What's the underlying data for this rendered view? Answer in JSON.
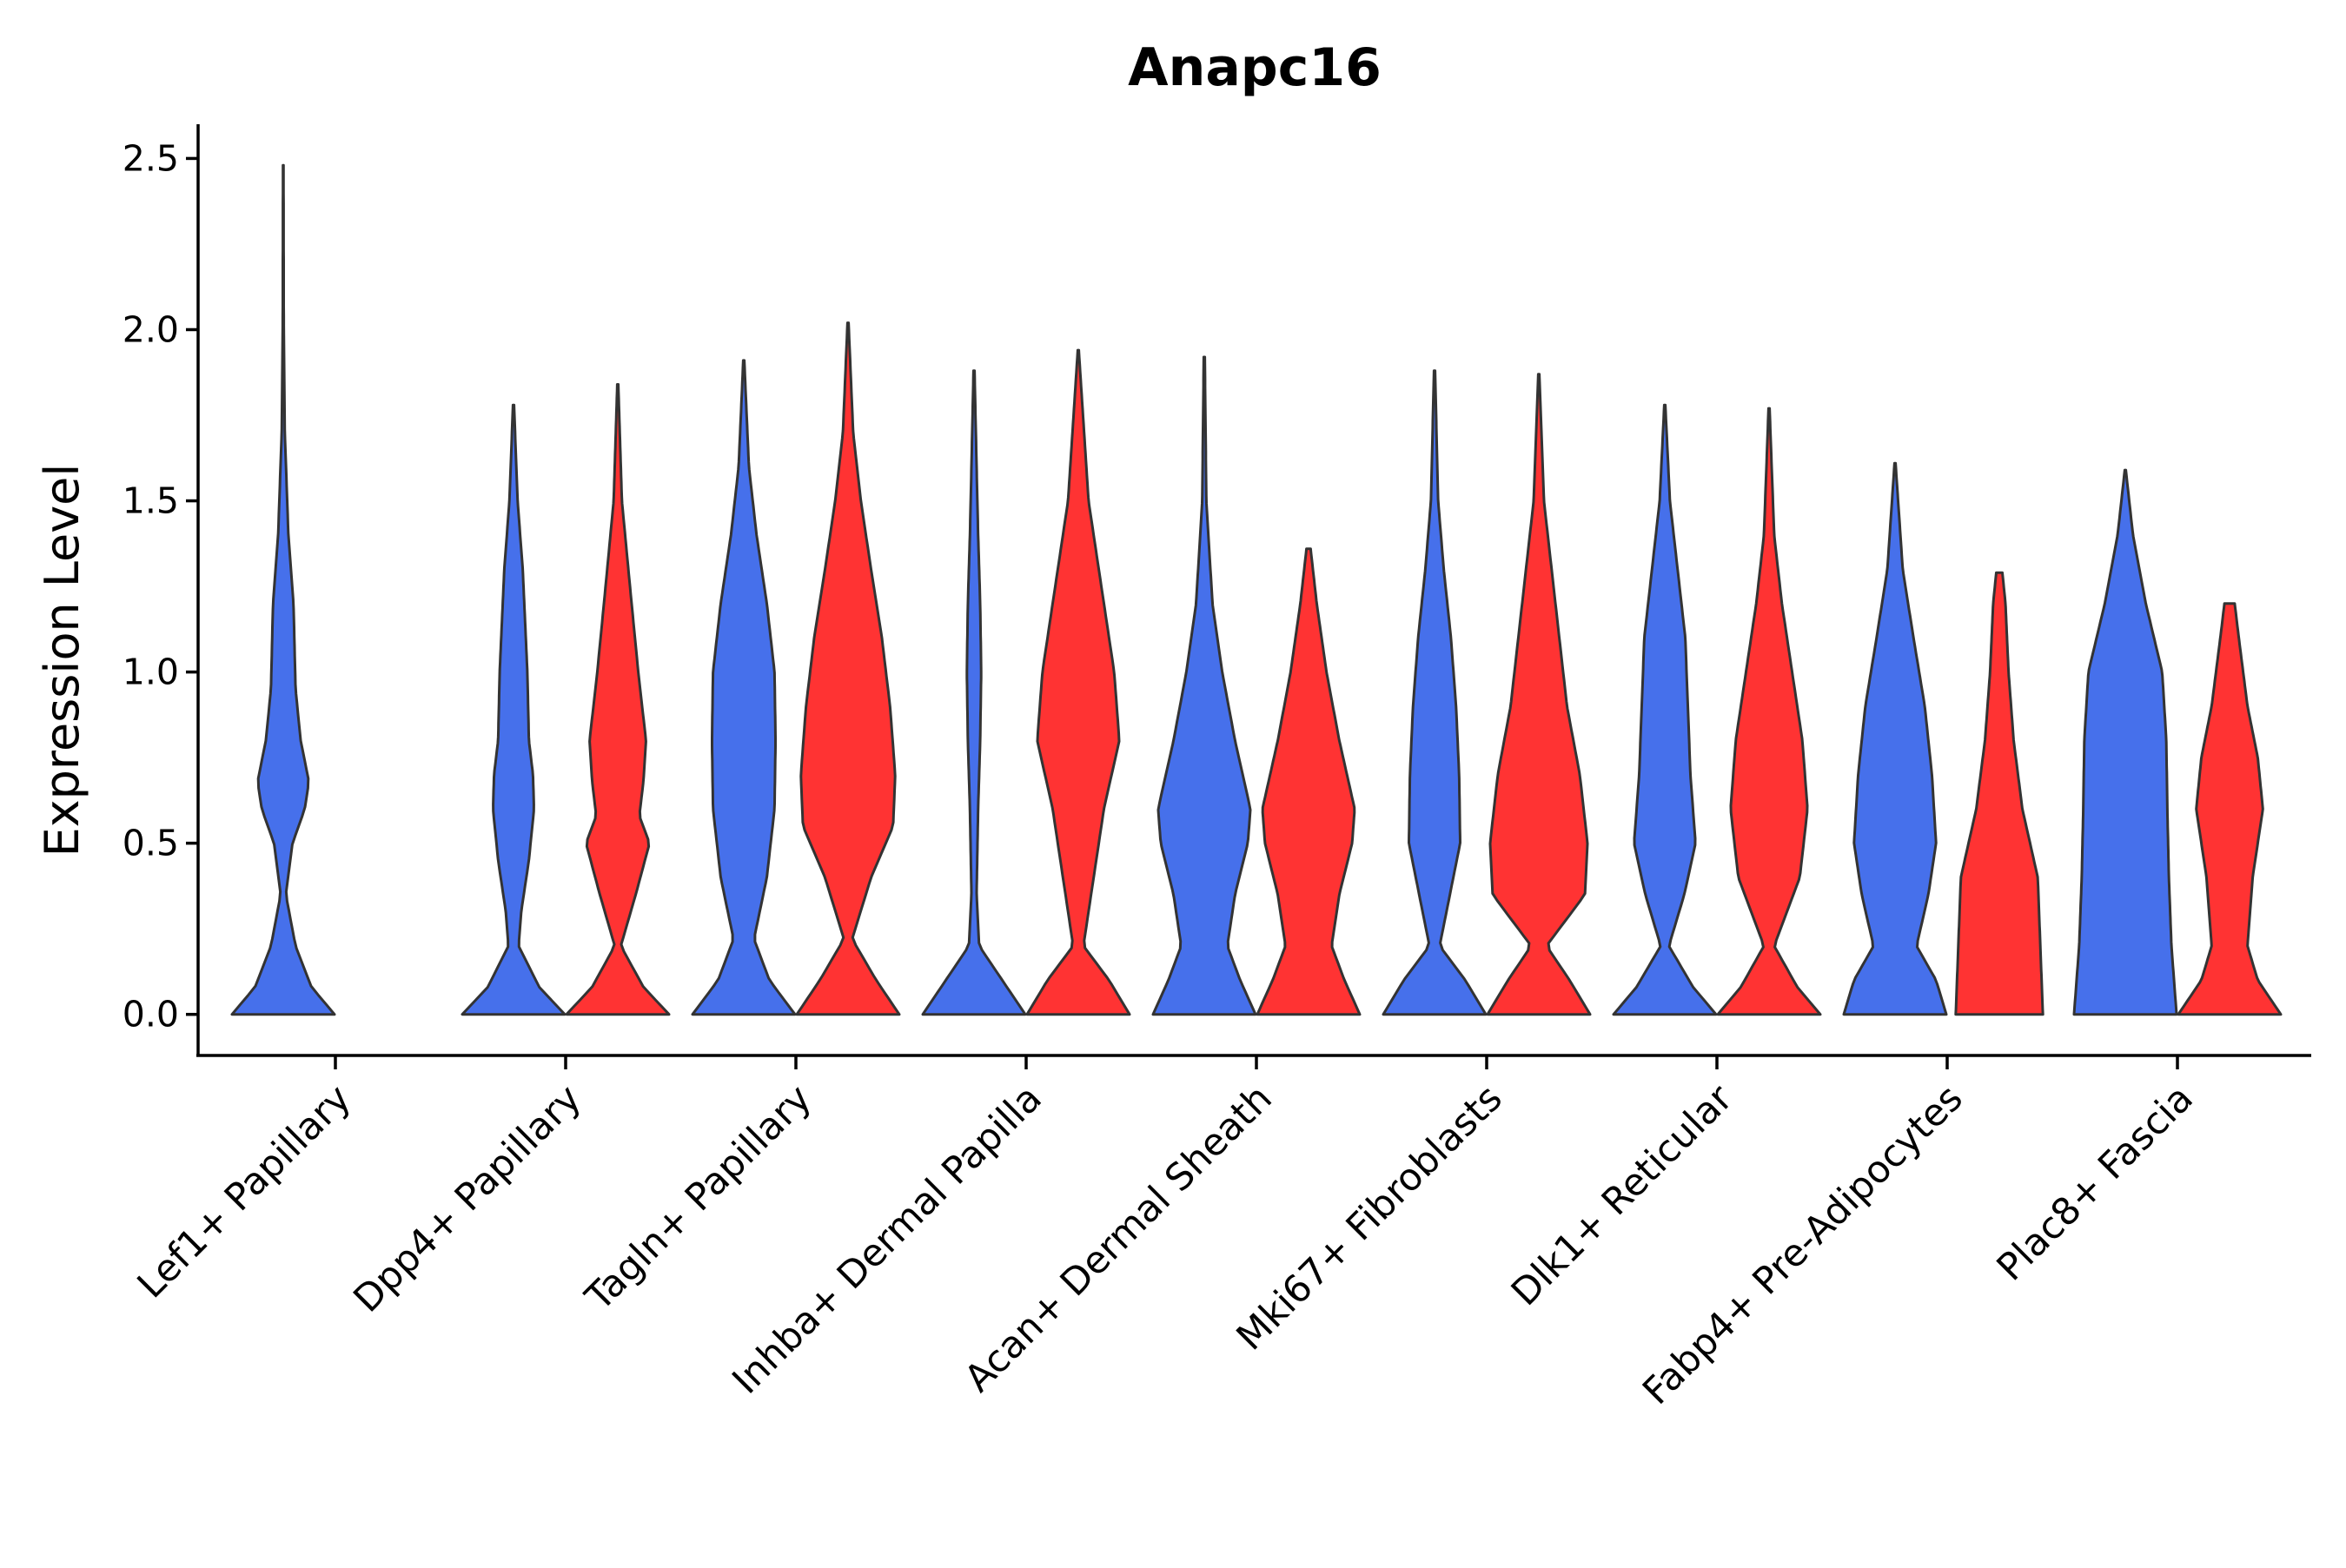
{
  "chart_data": {
    "type": "violin",
    "title": "Anapc16",
    "xlabel": "",
    "ylabel": "Expression Level",
    "ylim": [
      -0.12,
      2.6
    ],
    "yticks": [
      0.0,
      0.5,
      1.0,
      1.5,
      2.0,
      2.5
    ],
    "ytick_labels": [
      "0.0",
      "0.5",
      "1.0",
      "1.5",
      "2.0",
      "2.5"
    ],
    "grid": false,
    "legend": "none",
    "series_colors": {
      "blue": "#4670EB",
      "red": "#FF3333"
    },
    "categories": [
      "Lef1+ Papillary",
      "Dpp4+ Papillary",
      "Tagln+ Papillary",
      "Inhba+ Dermal Papilla",
      "Acan+ Dermal Sheath",
      "Mki67+ Fibroblasts",
      "Dlk1+ Reticular",
      "Fabp4+ Pre-Adipocytes",
      "Plac8+ Fascia"
    ],
    "violins": [
      {
        "category": "Lef1+ Papillary",
        "color": "blue",
        "max": 2.48,
        "profile": [
          [
            0,
            1.0
          ],
          [
            0.08,
            0.55
          ],
          [
            0.2,
            0.24
          ],
          [
            0.35,
            0.05
          ],
          [
            0.5,
            0.18
          ],
          [
            0.6,
            0.42
          ],
          [
            0.68,
            0.5
          ],
          [
            0.8,
            0.34
          ],
          [
            0.95,
            0.24
          ],
          [
            1.2,
            0.2
          ],
          [
            1.4,
            0.1
          ],
          [
            1.7,
            0.03
          ],
          [
            2.0,
            0.01
          ],
          [
            2.48,
            0.005
          ]
        ]
      },
      {
        "category": "Dpp4+ Papillary",
        "color": "blue",
        "max": 1.78,
        "profile": [
          [
            0,
            1.0
          ],
          [
            0.08,
            0.5
          ],
          [
            0.2,
            0.1
          ],
          [
            0.3,
            0.15
          ],
          [
            0.45,
            0.3
          ],
          [
            0.6,
            0.4
          ],
          [
            0.7,
            0.38
          ],
          [
            0.8,
            0.3
          ],
          [
            1.0,
            0.27
          ],
          [
            1.3,
            0.18
          ],
          [
            1.5,
            0.08
          ],
          [
            1.78,
            0.01
          ]
        ]
      },
      {
        "category": "Dpp4+ Papillary",
        "color": "red",
        "max": 1.84,
        "profile": [
          [
            0,
            1.0
          ],
          [
            0.08,
            0.5
          ],
          [
            0.2,
            0.06
          ],
          [
            0.35,
            0.35
          ],
          [
            0.5,
            0.62
          ],
          [
            0.58,
            0.42
          ],
          [
            0.68,
            0.5
          ],
          [
            0.8,
            0.55
          ],
          [
            1.0,
            0.4
          ],
          [
            1.2,
            0.27
          ],
          [
            1.5,
            0.08
          ],
          [
            1.84,
            0.01
          ]
        ]
      },
      {
        "category": "Tagln+ Papillary",
        "color": "blue",
        "max": 1.91,
        "profile": [
          [
            0,
            1.0
          ],
          [
            0.1,
            0.5
          ],
          [
            0.22,
            0.2
          ],
          [
            0.4,
            0.45
          ],
          [
            0.6,
            0.6
          ],
          [
            0.8,
            0.62
          ],
          [
            1.0,
            0.6
          ],
          [
            1.2,
            0.45
          ],
          [
            1.4,
            0.25
          ],
          [
            1.6,
            0.1
          ],
          [
            1.91,
            0.01
          ]
        ]
      },
      {
        "category": "Tagln+ Papillary",
        "color": "red",
        "max": 2.02,
        "profile": [
          [
            0,
            1.0
          ],
          [
            0.1,
            0.55
          ],
          [
            0.22,
            0.08
          ],
          [
            0.4,
            0.45
          ],
          [
            0.55,
            0.88
          ],
          [
            0.7,
            0.92
          ],
          [
            0.9,
            0.82
          ],
          [
            1.1,
            0.66
          ],
          [
            1.3,
            0.45
          ],
          [
            1.5,
            0.25
          ],
          [
            1.7,
            0.1
          ],
          [
            2.02,
            0.01
          ]
        ]
      },
      {
        "category": "Inhba+ Dermal Papilla",
        "color": "blue",
        "max": 1.88,
        "profile": [
          [
            0,
            1.0
          ],
          [
            0.1,
            0.55
          ],
          [
            0.2,
            0.1
          ],
          [
            0.35,
            0.05
          ],
          [
            0.6,
            0.08
          ],
          [
            0.8,
            0.12
          ],
          [
            1.0,
            0.14
          ],
          [
            1.2,
            0.12
          ],
          [
            1.4,
            0.08
          ],
          [
            1.6,
            0.05
          ],
          [
            1.88,
            0.01
          ]
        ]
      },
      {
        "category": "Inhba+ Dermal Papilla",
        "color": "red",
        "max": 1.94,
        "profile": [
          [
            0,
            1.0
          ],
          [
            0.1,
            0.6
          ],
          [
            0.2,
            0.1
          ],
          [
            0.4,
            0.3
          ],
          [
            0.6,
            0.5
          ],
          [
            0.8,
            0.8
          ],
          [
            1.0,
            0.7
          ],
          [
            1.2,
            0.5
          ],
          [
            1.5,
            0.2
          ],
          [
            1.94,
            0.01
          ]
        ]
      },
      {
        "category": "Acan+ Dermal Sheath",
        "color": "blue",
        "max": 1.92,
        "profile": [
          [
            0,
            1.0
          ],
          [
            0.1,
            0.7
          ],
          [
            0.2,
            0.45
          ],
          [
            0.35,
            0.6
          ],
          [
            0.5,
            0.85
          ],
          [
            0.6,
            0.9
          ],
          [
            0.8,
            0.6
          ],
          [
            1.0,
            0.35
          ],
          [
            1.2,
            0.16
          ],
          [
            1.5,
            0.04
          ],
          [
            1.92,
            0.01
          ]
        ]
      },
      {
        "category": "Acan+ Dermal Sheath",
        "color": "red",
        "max": 1.36,
        "profile": [
          [
            0,
            1.0
          ],
          [
            0.1,
            0.7
          ],
          [
            0.2,
            0.45
          ],
          [
            0.35,
            0.6
          ],
          [
            0.5,
            0.85
          ],
          [
            0.6,
            0.9
          ],
          [
            0.8,
            0.6
          ],
          [
            1.0,
            0.35
          ],
          [
            1.2,
            0.16
          ],
          [
            1.36,
            0.04
          ]
        ]
      },
      {
        "category": "Mki67+ Fibroblasts",
        "color": "blue",
        "max": 1.88,
        "profile": [
          [
            0,
            1.0
          ],
          [
            0.1,
            0.6
          ],
          [
            0.2,
            0.1
          ],
          [
            0.35,
            0.3
          ],
          [
            0.5,
            0.5
          ],
          [
            0.7,
            0.48
          ],
          [
            0.9,
            0.42
          ],
          [
            1.1,
            0.32
          ],
          [
            1.3,
            0.18
          ],
          [
            1.5,
            0.07
          ],
          [
            1.88,
            0.01
          ]
        ]
      },
      {
        "category": "Mki67+ Fibroblasts",
        "color": "red",
        "max": 1.87,
        "profile": [
          [
            0,
            1.0
          ],
          [
            0.1,
            0.6
          ],
          [
            0.2,
            0.15
          ],
          [
            0.35,
            0.9
          ],
          [
            0.5,
            0.95
          ],
          [
            0.7,
            0.8
          ],
          [
            0.9,
            0.55
          ],
          [
            1.1,
            0.4
          ],
          [
            1.3,
            0.25
          ],
          [
            1.5,
            0.1
          ],
          [
            1.87,
            0.01
          ]
        ]
      },
      {
        "category": "Dlk1+ Reticular",
        "color": "blue",
        "max": 1.78,
        "profile": [
          [
            0,
            1.0
          ],
          [
            0.08,
            0.55
          ],
          [
            0.2,
            0.08
          ],
          [
            0.35,
            0.38
          ],
          [
            0.5,
            0.6
          ],
          [
            0.7,
            0.5
          ],
          [
            0.9,
            0.45
          ],
          [
            1.1,
            0.4
          ],
          [
            1.3,
            0.25
          ],
          [
            1.5,
            0.1
          ],
          [
            1.78,
            0.01
          ]
        ]
      },
      {
        "category": "Dlk1+ Reticular",
        "color": "red",
        "max": 1.77,
        "profile": [
          [
            0,
            1.0
          ],
          [
            0.08,
            0.55
          ],
          [
            0.2,
            0.1
          ],
          [
            0.4,
            0.6
          ],
          [
            0.6,
            0.75
          ],
          [
            0.8,
            0.65
          ],
          [
            1.0,
            0.45
          ],
          [
            1.2,
            0.25
          ],
          [
            1.4,
            0.1
          ],
          [
            1.77,
            0.01
          ]
        ]
      },
      {
        "category": "Fabp4+ Pre-Adipocytes",
        "color": "blue",
        "max": 1.61,
        "profile": [
          [
            0,
            1.0
          ],
          [
            0.1,
            0.8
          ],
          [
            0.2,
            0.42
          ],
          [
            0.35,
            0.65
          ],
          [
            0.5,
            0.8
          ],
          [
            0.7,
            0.72
          ],
          [
            0.9,
            0.58
          ],
          [
            1.1,
            0.36
          ],
          [
            1.3,
            0.15
          ],
          [
            1.61,
            0.01
          ]
        ]
      },
      {
        "category": "Fabp4+ Pre-Adipocytes",
        "color": "red",
        "max": 1.29,
        "profile": [
          [
            0,
            0.85
          ],
          [
            0.2,
            0.8
          ],
          [
            0.4,
            0.75
          ],
          [
            0.6,
            0.45
          ],
          [
            0.8,
            0.28
          ],
          [
            1.0,
            0.18
          ],
          [
            1.2,
            0.12
          ],
          [
            1.29,
            0.06
          ]
        ]
      },
      {
        "category": "Plac8+ Fascia",
        "color": "blue",
        "max": 1.59,
        "profile": [
          [
            0,
            1.0
          ],
          [
            0.2,
            0.9
          ],
          [
            0.4,
            0.85
          ],
          [
            0.6,
            0.82
          ],
          [
            0.8,
            0.8
          ],
          [
            1.0,
            0.72
          ],
          [
            1.2,
            0.4
          ],
          [
            1.4,
            0.15
          ],
          [
            1.59,
            0.01
          ]
        ]
      },
      {
        "category": "Plac8+ Fascia",
        "color": "red",
        "max": 1.2,
        "profile": [
          [
            0,
            1.0
          ],
          [
            0.1,
            0.55
          ],
          [
            0.2,
            0.35
          ],
          [
            0.4,
            0.45
          ],
          [
            0.6,
            0.65
          ],
          [
            0.75,
            0.55
          ],
          [
            0.9,
            0.35
          ],
          [
            1.1,
            0.18
          ],
          [
            1.2,
            0.1
          ]
        ]
      }
    ]
  }
}
